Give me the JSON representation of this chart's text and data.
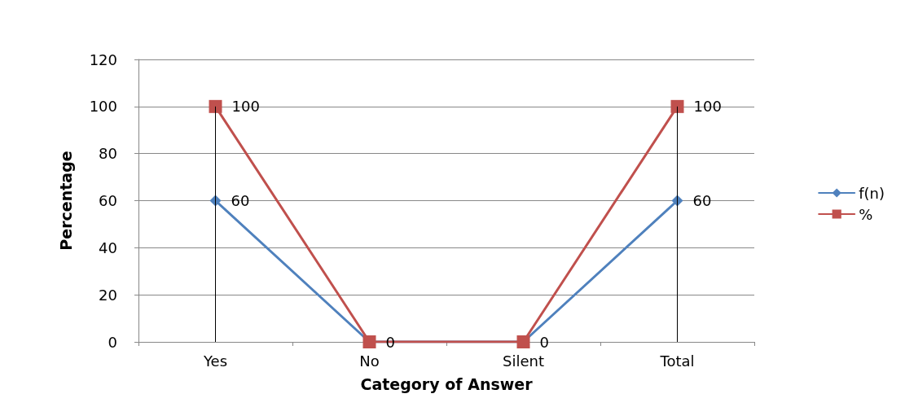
{
  "chart_data": {
    "type": "line",
    "xlabel": "Category of Answer",
    "ylabel": "Percentage",
    "categories": [
      "Yes",
      "No",
      "Silent",
      "Total"
    ],
    "series": [
      {
        "name": "f(n)",
        "color": "#4f81bd",
        "marker": "diamond",
        "values": [
          60,
          0,
          0,
          60
        ],
        "value_labels": [
          "60",
          null,
          null,
          "60"
        ]
      },
      {
        "name": "%",
        "color": "#c0504d",
        "marker": "square",
        "values": [
          100,
          0,
          0,
          100
        ],
        "value_labels": [
          "100",
          "0",
          "0",
          "100"
        ]
      }
    ],
    "ylim": [
      0,
      120
    ],
    "yticks": [
      0,
      20,
      40,
      60,
      80,
      100,
      120
    ],
    "grid": "y",
    "legend": "right",
    "ref_lines": [
      {
        "axis": "x",
        "value": "Yes",
        "color": "#000000"
      },
      {
        "axis": "x",
        "value": "Total",
        "color": "#000000"
      }
    ]
  }
}
